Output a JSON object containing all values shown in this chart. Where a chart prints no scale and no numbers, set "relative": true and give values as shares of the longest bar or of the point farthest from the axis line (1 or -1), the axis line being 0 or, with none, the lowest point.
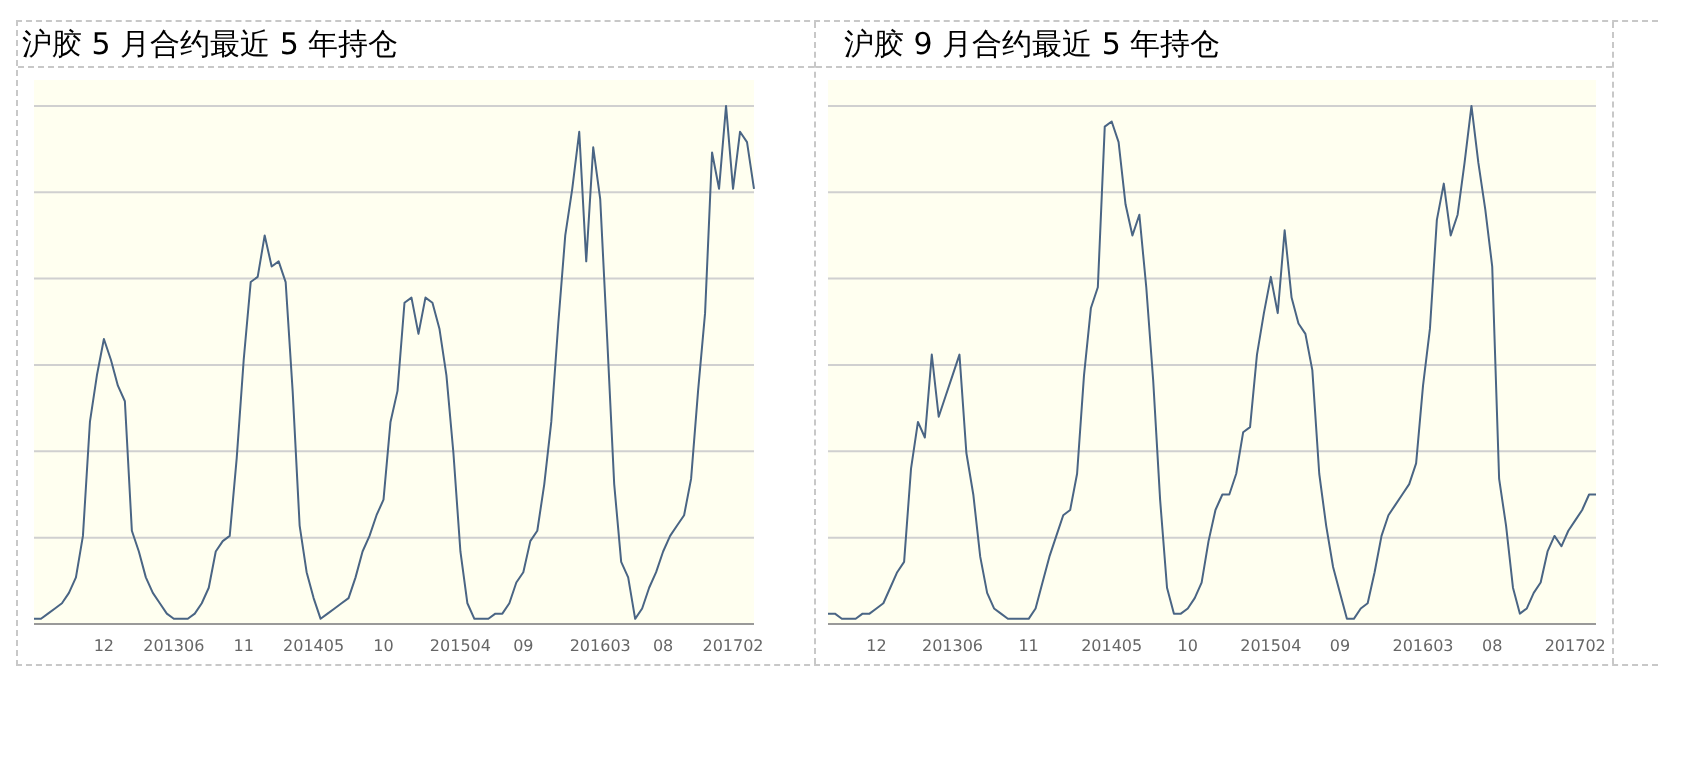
{
  "chart_data": [
    {
      "type": "line",
      "title": "沪胶 5 月合约最近 5 年持仓",
      "relative": true,
      "grid": "y",
      "legend": false,
      "marker": "none",
      "line_style": "solid",
      "categories": [
        null,
        null,
        null,
        null,
        null,
        null,
        null,
        null,
        null,
        null,
        "12",
        null,
        null,
        null,
        null,
        null,
        null,
        null,
        null,
        null,
        "201306",
        null,
        null,
        null,
        null,
        null,
        null,
        null,
        null,
        null,
        "11",
        null,
        null,
        null,
        null,
        null,
        null,
        null,
        null,
        null,
        "201405",
        null,
        null,
        null,
        null,
        null,
        null,
        null,
        null,
        null,
        "10",
        null,
        null,
        null,
        null,
        null,
        null,
        null,
        null,
        null,
        null,
        "201504",
        null,
        null,
        null,
        null,
        null,
        null,
        null,
        null,
        "09",
        null,
        null,
        null,
        null,
        null,
        null,
        null,
        null,
        null,
        null,
        "201603",
        null,
        null,
        null,
        null,
        null,
        null,
        null,
        null,
        "08",
        null,
        null,
        null,
        null,
        null,
        null,
        null,
        null,
        null,
        "201702",
        null,
        null,
        null
      ],
      "series": [
        {
          "color": "#4a6584",
          "values": [
            0.01,
            0.01,
            0.02,
            0.03,
            0.04,
            0.06,
            0.09,
            0.17,
            0.39,
            0.48,
            0.55,
            0.51,
            0.46,
            0.43,
            0.18,
            0.14,
            0.09,
            0.06,
            0.04,
            0.02,
            0.01,
            0.01,
            0.01,
            0.02,
            0.04,
            0.07,
            0.14,
            0.16,
            0.17,
            0.32,
            0.51,
            0.66,
            0.67,
            0.75,
            0.69,
            0.7,
            0.66,
            0.45,
            0.19,
            0.1,
            0.05,
            0.01,
            0.02,
            0.03,
            0.04,
            0.05,
            0.09,
            0.14,
            0.17,
            0.21,
            0.24,
            0.39,
            0.45,
            0.62,
            0.63,
            0.56,
            0.63,
            0.62,
            0.57,
            0.48,
            0.33,
            0.14,
            0.04,
            0.01,
            0.01,
            0.01,
            0.02,
            0.02,
            0.04,
            0.08,
            0.1,
            0.16,
            0.18,
            0.27,
            0.39,
            0.58,
            0.75,
            0.84,
            0.95,
            0.7,
            0.92,
            0.82,
            0.55,
            0.27,
            0.12,
            0.09,
            0.01,
            0.03,
            0.07,
            0.1,
            0.14,
            0.17,
            0.19,
            0.21,
            0.28,
            0.45,
            0.6,
            0.91,
            0.84,
            1.0,
            0.84,
            0.95,
            0.93,
            0.84
          ]
        }
      ]
    },
    {
      "type": "line",
      "title": "沪胶 9 月合约最近 5 年持仓",
      "relative": true,
      "grid": "y",
      "legend": false,
      "marker": "none",
      "line_style": "solid",
      "categories": [
        null,
        null,
        null,
        null,
        null,
        null,
        null,
        "12",
        null,
        null,
        null,
        null,
        null,
        null,
        null,
        null,
        null,
        null,
        "201306",
        null,
        null,
        null,
        null,
        null,
        null,
        null,
        null,
        null,
        null,
        "11",
        null,
        null,
        null,
        null,
        null,
        null,
        null,
        null,
        null,
        null,
        null,
        "201405",
        null,
        null,
        null,
        null,
        null,
        null,
        null,
        null,
        null,
        null,
        "10",
        null,
        null,
        null,
        null,
        null,
        null,
        null,
        null,
        null,
        null,
        null,
        "201504",
        null,
        null,
        null,
        null,
        null,
        null,
        null,
        null,
        null,
        "09",
        null,
        null,
        null,
        null,
        null,
        null,
        null,
        null,
        null,
        null,
        null,
        "201603",
        null,
        null,
        null,
        null,
        null,
        null,
        null,
        null,
        null,
        "08",
        null,
        null,
        null,
        null,
        null,
        null,
        null,
        null,
        null,
        null,
        null,
        "201702",
        null,
        null,
        null
      ],
      "series": [
        {
          "color": "#4a6584",
          "values": [
            0.02,
            0.02,
            0.01,
            0.01,
            0.01,
            0.02,
            0.02,
            0.03,
            0.04,
            0.07,
            0.1,
            0.12,
            0.3,
            0.39,
            0.36,
            0.52,
            0.4,
            0.44,
            0.48,
            0.52,
            0.33,
            0.25,
            0.13,
            0.06,
            0.03,
            0.02,
            0.01,
            0.01,
            0.01,
            0.01,
            0.03,
            0.08,
            0.13,
            0.17,
            0.21,
            0.22,
            0.29,
            0.48,
            0.61,
            0.65,
            0.96,
            0.97,
            0.93,
            0.81,
            0.75,
            0.79,
            0.65,
            0.47,
            0.24,
            0.07,
            0.02,
            0.02,
            0.03,
            0.05,
            0.08,
            0.16,
            0.22,
            0.25,
            0.25,
            0.29,
            0.37,
            0.38,
            0.52,
            0.6,
            0.67,
            0.6,
            0.76,
            0.63,
            0.58,
            0.56,
            0.49,
            0.29,
            0.19,
            0.11,
            0.06,
            0.01,
            0.01,
            0.03,
            0.04,
            0.1,
            0.17,
            0.21,
            0.23,
            0.25,
            0.27,
            0.31,
            0.46,
            0.57,
            0.78,
            0.85,
            0.75,
            0.79,
            0.89,
            1.0,
            0.89,
            0.8,
            0.69,
            0.28,
            0.19,
            0.07,
            0.02,
            0.03,
            0.06,
            0.08,
            0.14,
            0.17,
            0.15,
            0.18,
            0.2,
            0.22,
            0.25,
            0.25
          ]
        }
      ]
    }
  ]
}
